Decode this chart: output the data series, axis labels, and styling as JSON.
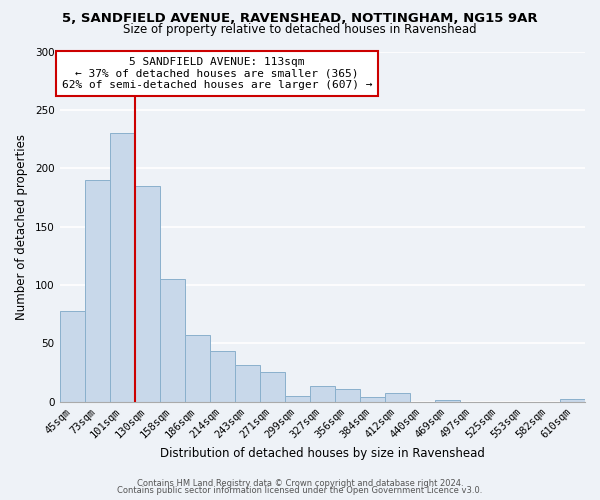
{
  "title_line1": "5, SANDFIELD AVENUE, RAVENSHEAD, NOTTINGHAM, NG15 9AR",
  "title_line2": "Size of property relative to detached houses in Ravenshead",
  "xlabel": "Distribution of detached houses by size in Ravenshead",
  "ylabel": "Number of detached properties",
  "categories": [
    "45sqm",
    "73sqm",
    "101sqm",
    "130sqm",
    "158sqm",
    "186sqm",
    "214sqm",
    "243sqm",
    "271sqm",
    "299sqm",
    "327sqm",
    "356sqm",
    "384sqm",
    "412sqm",
    "440sqm",
    "469sqm",
    "497sqm",
    "525sqm",
    "553sqm",
    "582sqm",
    "610sqm"
  ],
  "values": [
    78,
    190,
    230,
    185,
    105,
    57,
    43,
    31,
    25,
    5,
    13,
    11,
    4,
    7,
    0,
    1,
    0,
    0,
    0,
    0,
    2
  ],
  "bar_color": "#c8d8ea",
  "bar_edge_color": "#8ab0cc",
  "vline_color": "#cc0000",
  "annotation_title": "5 SANDFIELD AVENUE: 113sqm",
  "annotation_line1": "← 37% of detached houses are smaller (365)",
  "annotation_line2": "62% of semi-detached houses are larger (607) →",
  "annotation_box_facecolor": "#ffffff",
  "annotation_box_edgecolor": "#cc0000",
  "ylim": [
    0,
    300
  ],
  "yticks": [
    0,
    50,
    100,
    150,
    200,
    250,
    300
  ],
  "footer_line1": "Contains HM Land Registry data © Crown copyright and database right 2024.",
  "footer_line2": "Contains public sector information licensed under the Open Government Licence v3.0.",
  "background_color": "#eef2f7",
  "grid_color": "#ffffff",
  "title1_fontsize": 9.5,
  "title2_fontsize": 8.5,
  "axis_label_fontsize": 8.5,
  "tick_fontsize": 7.5,
  "footer_fontsize": 6.0
}
